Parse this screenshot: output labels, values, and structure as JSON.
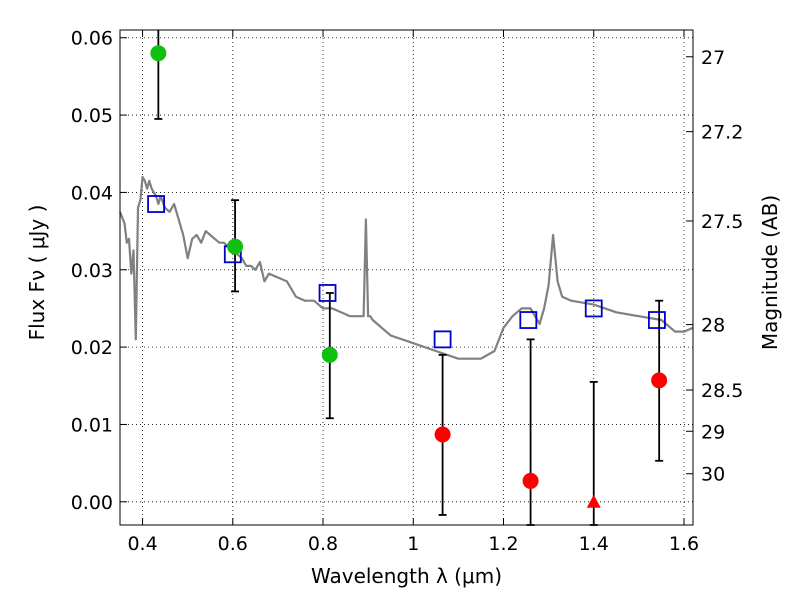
{
  "chart_data": {
    "type": "scatter",
    "xlabel": "Wavelength  λ (μm)",
    "ylabel": "Flux  Fν  ( μJy )",
    "ylabel_right": "Magnitude (AB)",
    "xlim": [
      0.35,
      1.62
    ],
    "ylim": [
      -0.003,
      0.061
    ],
    "grid": true,
    "x_ticks": [
      {
        "value": 0.4,
        "label": "0.4"
      },
      {
        "value": 0.6,
        "label": "0.6"
      },
      {
        "value": 0.8,
        "label": "0.8"
      },
      {
        "value": 1.0,
        "label": "1"
      },
      {
        "value": 1.2,
        "label": "1.2"
      },
      {
        "value": 1.4,
        "label": "1.4"
      },
      {
        "value": 1.6,
        "label": "1.6"
      }
    ],
    "y_ticks": [
      {
        "value": 0.0,
        "label": "0.00"
      },
      {
        "value": 0.01,
        "label": "0.01"
      },
      {
        "value": 0.02,
        "label": "0.02"
      },
      {
        "value": 0.03,
        "label": "0.03"
      },
      {
        "value": 0.04,
        "label": "0.04"
      },
      {
        "value": 0.05,
        "label": "0.05"
      },
      {
        "value": 0.06,
        "label": "0.06"
      }
    ],
    "right_ticks": [
      {
        "flux": 0.05754,
        "label": "27"
      },
      {
        "flux": 0.04786,
        "label": "27.2"
      },
      {
        "flux": 0.03631,
        "label": "27.5"
      },
      {
        "flux": 0.02291,
        "label": "28"
      },
      {
        "flux": 0.01445,
        "label": "28.5"
      },
      {
        "flux": 0.00912,
        "label": "29"
      },
      {
        "flux": 0.00363,
        "label": "30"
      }
    ],
    "colors": {
      "model": "#808080",
      "model_phot": "#0000cc",
      "detection": "#10c010",
      "low_signal": "#ff0000",
      "errorbar": "#000000"
    },
    "model_sed": {
      "x": [
        0.35,
        0.36,
        0.365,
        0.37,
        0.375,
        0.38,
        0.385,
        0.39,
        0.395,
        0.4,
        0.405,
        0.41,
        0.415,
        0.42,
        0.425,
        0.43,
        0.435,
        0.44,
        0.45,
        0.46,
        0.47,
        0.48,
        0.49,
        0.5,
        0.51,
        0.52,
        0.53,
        0.54,
        0.55,
        0.56,
        0.57,
        0.58,
        0.59,
        0.6,
        0.61,
        0.62,
        0.63,
        0.64,
        0.65,
        0.66,
        0.67,
        0.68,
        0.7,
        0.72,
        0.73,
        0.74,
        0.76,
        0.78,
        0.8,
        0.82,
        0.84,
        0.86,
        0.88,
        0.89,
        0.895,
        0.9,
        0.905,
        0.91,
        0.95,
        1.0,
        1.05,
        1.1,
        1.15,
        1.18,
        1.2,
        1.22,
        1.24,
        1.26,
        1.27,
        1.28,
        1.29,
        1.3,
        1.31,
        1.32,
        1.33,
        1.35,
        1.4,
        1.45,
        1.5,
        1.55,
        1.58,
        1.6,
        1.62
      ],
      "y": [
        0.0375,
        0.036,
        0.0335,
        0.034,
        0.0295,
        0.0325,
        0.021,
        0.038,
        0.039,
        0.042,
        0.0415,
        0.0405,
        0.0415,
        0.0405,
        0.04,
        0.0395,
        0.0385,
        0.0395,
        0.038,
        0.0375,
        0.0385,
        0.0365,
        0.0345,
        0.0315,
        0.034,
        0.0345,
        0.0335,
        0.035,
        0.0345,
        0.034,
        0.0335,
        0.0335,
        0.033,
        0.0325,
        0.032,
        0.0315,
        0.0305,
        0.0305,
        0.03,
        0.031,
        0.0285,
        0.0295,
        0.029,
        0.0285,
        0.0275,
        0.0265,
        0.026,
        0.026,
        0.025,
        0.025,
        0.0245,
        0.024,
        0.024,
        0.024,
        0.0365,
        0.024,
        0.024,
        0.0235,
        0.0215,
        0.0205,
        0.0195,
        0.0185,
        0.0185,
        0.0195,
        0.0225,
        0.024,
        0.025,
        0.025,
        0.024,
        0.023,
        0.025,
        0.028,
        0.0345,
        0.0285,
        0.0265,
        0.026,
        0.0255,
        0.0245,
        0.024,
        0.0235,
        0.022,
        0.022,
        0.0225
      ]
    },
    "series": [
      {
        "role": "model_phot",
        "marker": "open-square",
        "points": [
          {
            "x": 0.43,
            "y": 0.0385
          },
          {
            "x": 0.6,
            "y": 0.032
          },
          {
            "x": 0.81,
            "y": 0.027
          },
          {
            "x": 1.065,
            "y": 0.021
          },
          {
            "x": 1.255,
            "y": 0.0235
          },
          {
            "x": 1.4,
            "y": 0.025
          },
          {
            "x": 1.54,
            "y": 0.0235
          }
        ]
      },
      {
        "role": "detection",
        "marker": "filled-circle",
        "points": [
          {
            "x": 0.435,
            "y": 0.058,
            "err_lo": 0.0495,
            "err_hi": 0.0615
          },
          {
            "x": 0.605,
            "y": 0.033,
            "err_lo": 0.0272,
            "err_hi": 0.039
          },
          {
            "x": 0.815,
            "y": 0.019,
            "err_lo": 0.0108,
            "err_hi": 0.027
          }
        ]
      },
      {
        "role": "low_signal",
        "marker": "filled-circle",
        "points": [
          {
            "x": 1.065,
            "y": 0.0087,
            "err_lo": -0.0017,
            "err_hi": 0.019
          },
          {
            "x": 1.26,
            "y": 0.0027,
            "err_lo": -0.003,
            "err_hi": 0.021
          },
          {
            "x": 1.545,
            "y": 0.0157,
            "err_lo": 0.0053,
            "err_hi": 0.026
          }
        ]
      },
      {
        "role": "low_signal",
        "marker": "filled-triangle",
        "points": [
          {
            "x": 1.4,
            "y": 0.0,
            "err_lo": -0.003,
            "err_hi": 0.0155
          }
        ]
      }
    ]
  }
}
